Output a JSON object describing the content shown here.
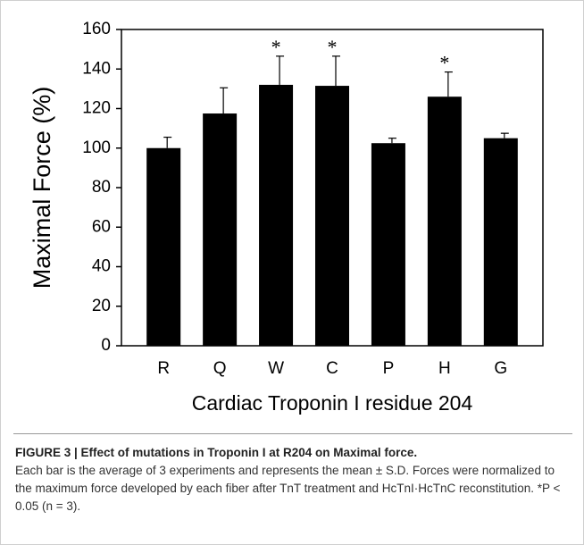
{
  "chart_data": {
    "type": "bar",
    "ylabel": "Maximal Force (%)",
    "xlabel": "Cardiac Troponin I residue 204",
    "categories": [
      "R",
      "Q",
      "W",
      "C",
      "P",
      "H",
      "G"
    ],
    "values": [
      100,
      117.5,
      132,
      131.5,
      102.5,
      126,
      105
    ],
    "errors": [
      5.5,
      13,
      14.5,
      15,
      2.5,
      12.5,
      2.5
    ],
    "significance": [
      null,
      null,
      "*",
      "*",
      null,
      "*",
      null
    ],
    "color": "#000000",
    "ylim": [
      0,
      160
    ],
    "yticks": [
      0,
      20,
      40,
      60,
      80,
      100,
      120,
      140,
      160
    ],
    "grid": false
  },
  "caption": {
    "title": "FIGURE 3 | Effect of mutations in Troponin I at R204 on Maximal force.",
    "text": "Each bar is the average of 3 experiments and represents the mean ± S.D. Forces were normalized to the maximum force developed by each fiber after TnT treatment and HcTnI·HcTnC reconstitution. *P < 0.05 (n = 3)."
  }
}
